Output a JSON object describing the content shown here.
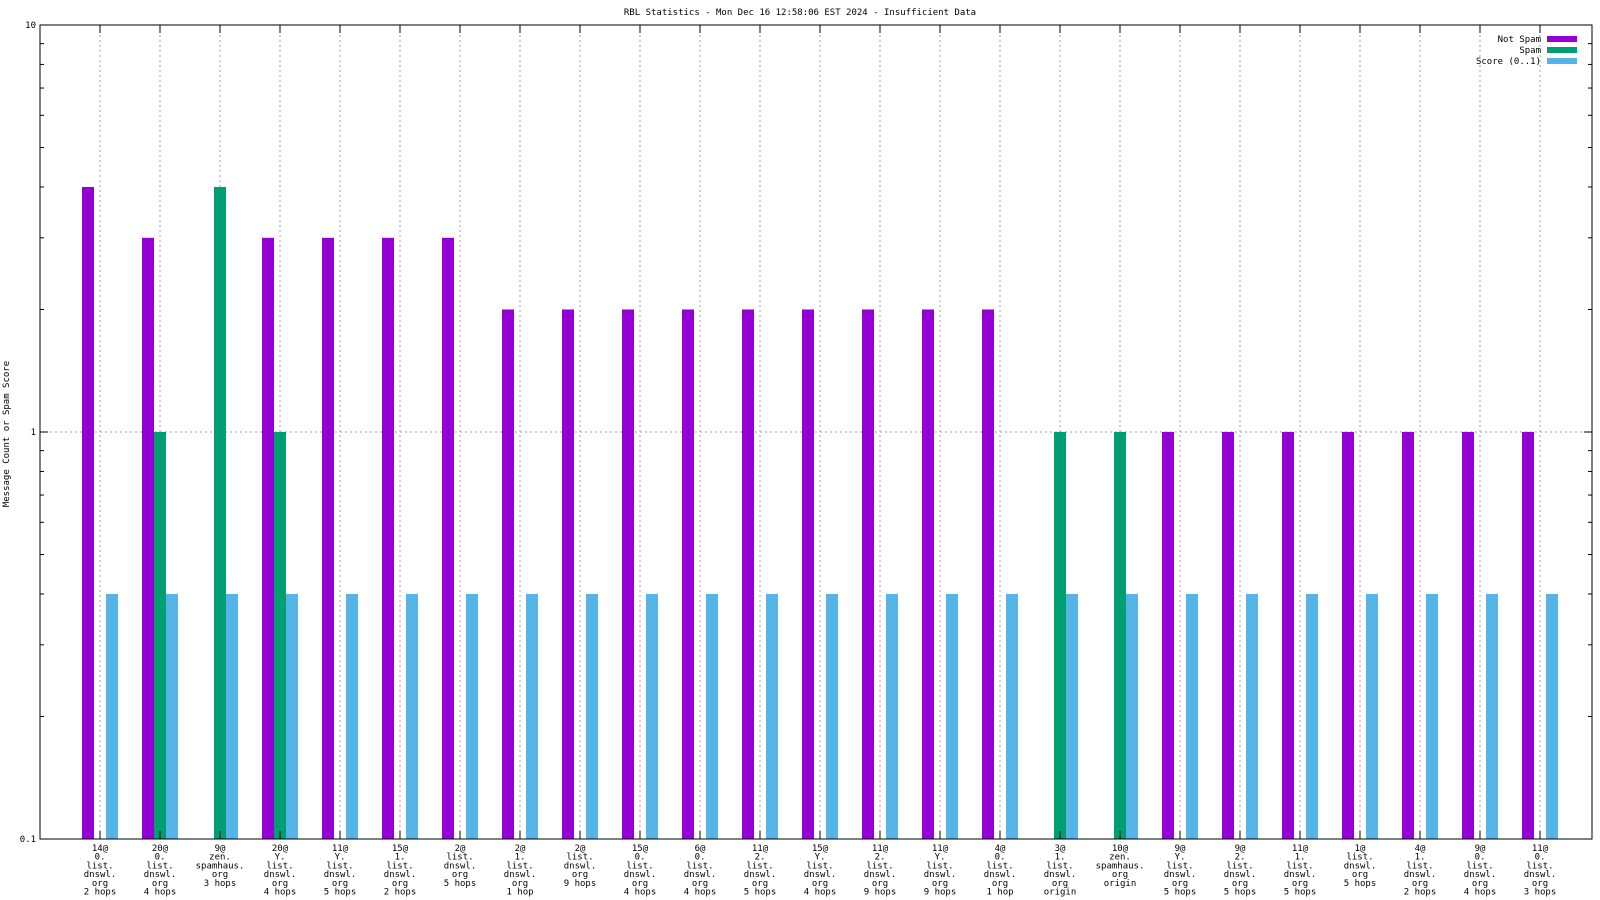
{
  "chart_data": {
    "type": "bar",
    "title": "RBL Statistics - Mon Dec 16 12:58:06 EST 2024 - Insufficient Data",
    "ylabel": "Message Count or Spam Score",
    "xlabel": "",
    "yscale": "log",
    "ylim": [
      0.1,
      10
    ],
    "yticks": [
      "0.1",
      "1",
      "10"
    ],
    "grid": "on",
    "legend_position": "top-right",
    "categories": [
      [
        "14@",
        "0.",
        "list.",
        "dnswl.",
        "org",
        "2 hops"
      ],
      [
        "20@",
        "0.",
        "list.",
        "dnswl.",
        "org",
        "4 hops"
      ],
      [
        "9@",
        "zen.",
        "spamhaus.",
        "org",
        "3 hops"
      ],
      [
        "20@",
        "Y.",
        "list.",
        "dnswl.",
        "org",
        "4 hops"
      ],
      [
        "11@",
        "Y.",
        "list.",
        "dnswl.",
        "org",
        "5 hops"
      ],
      [
        "15@",
        "1.",
        "list.",
        "dnswl.",
        "org",
        "2 hops"
      ],
      [
        "2@",
        "list.",
        "dnswl.",
        "org",
        "5 hops"
      ],
      [
        "2@",
        "1.",
        "list.",
        "dnswl.",
        "org",
        "1 hop"
      ],
      [
        "2@",
        "list.",
        "dnswl.",
        "org",
        "9 hops"
      ],
      [
        "15@",
        "0.",
        "list.",
        "dnswl.",
        "org",
        "4 hops"
      ],
      [
        "6@",
        "0.",
        "list.",
        "dnswl.",
        "org",
        "4 hops"
      ],
      [
        "11@",
        "2.",
        "list.",
        "dnswl.",
        "org",
        "5 hops"
      ],
      [
        "15@",
        "Y.",
        "list.",
        "dnswl.",
        "org",
        "4 hops"
      ],
      [
        "11@",
        "2.",
        "list.",
        "dnswl.",
        "org",
        "9 hops"
      ],
      [
        "11@",
        "Y.",
        "list.",
        "dnswl.",
        "org",
        "9 hops"
      ],
      [
        "4@",
        "0.",
        "list.",
        "dnswl.",
        "org",
        "1 hop"
      ],
      [
        "3@",
        "1.",
        "list.",
        "dnswl.",
        "org",
        "origin"
      ],
      [
        "10@",
        "zen.",
        "spamhaus.",
        "org",
        "origin"
      ],
      [
        "9@",
        "Y.",
        "list.",
        "dnswl.",
        "org",
        "5 hops"
      ],
      [
        "9@",
        "2.",
        "list.",
        "dnswl.",
        "org",
        "5 hops"
      ],
      [
        "11@",
        "1.",
        "list.",
        "dnswl.",
        "org",
        "5 hops"
      ],
      [
        "1@",
        "list.",
        "dnswl.",
        "org",
        "5 hops"
      ],
      [
        "4@",
        "1.",
        "list.",
        "dnswl.",
        "org",
        "2 hops"
      ],
      [
        "9@",
        "0.",
        "list.",
        "dnswl.",
        "org",
        "4 hops"
      ],
      [
        "11@",
        "0.",
        "list.",
        "dnswl.",
        "org",
        "3 hops"
      ]
    ],
    "series": [
      {
        "name": "Not Spam",
        "color": "#9400d3",
        "values": [
          4,
          3,
          null,
          3,
          3,
          3,
          3,
          2,
          2,
          2,
          2,
          2,
          2,
          2,
          2,
          2,
          null,
          null,
          1,
          1,
          1,
          1,
          1,
          1,
          1
        ]
      },
      {
        "name": "Spam",
        "color": "#009e73",
        "values": [
          null,
          1,
          4,
          1,
          null,
          null,
          null,
          null,
          null,
          null,
          null,
          null,
          null,
          null,
          null,
          null,
          1,
          1,
          null,
          null,
          null,
          null,
          null,
          null,
          null
        ]
      },
      {
        "name": "Score (0..1)",
        "color": "#56b4e9",
        "values": [
          0.4,
          0.4,
          0.4,
          0.4,
          0.4,
          0.4,
          0.4,
          0.4,
          0.4,
          0.4,
          0.4,
          0.4,
          0.4,
          0.4,
          0.4,
          0.4,
          0.4,
          0.4,
          0.4,
          0.4,
          0.4,
          0.4,
          0.4,
          0.4,
          0.4
        ]
      }
    ]
  }
}
